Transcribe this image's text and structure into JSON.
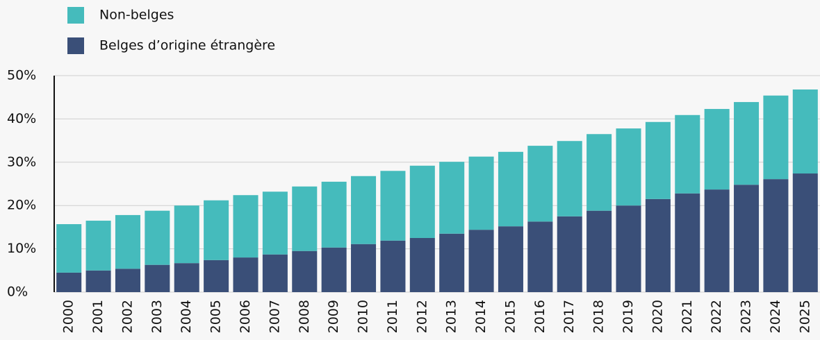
{
  "chart_data": {
    "type": "stacked_bar",
    "categories": [
      "2000",
      "2001",
      "2002",
      "2003",
      "2004",
      "2005",
      "2006",
      "2007",
      "2008",
      "2009",
      "2010",
      "2011",
      "2012",
      "2013",
      "2014",
      "2015",
      "2016",
      "2017",
      "2018",
      "2019",
      "2020",
      "2021",
      "2022",
      "2023",
      "2024",
      "2025"
    ],
    "series": [
      {
        "name": "Non-belges",
        "color": "#45bbbc",
        "values": [
          11.2,
          11.5,
          12.4,
          12.5,
          13.3,
          13.8,
          14.4,
          14.5,
          14.9,
          15.2,
          15.7,
          16.1,
          16.7,
          16.6,
          16.9,
          17.2,
          17.5,
          17.4,
          17.7,
          17.8,
          17.8,
          18.1,
          18.6,
          19.1,
          19.3,
          19.4
        ]
      },
      {
        "name": "Belges d’origine étrangère",
        "color": "#3a4f78",
        "values": [
          4.5,
          5.0,
          5.4,
          6.3,
          6.7,
          7.4,
          8.0,
          8.7,
          9.5,
          10.3,
          11.1,
          11.9,
          12.5,
          13.5,
          14.4,
          15.2,
          16.3,
          17.5,
          18.8,
          20.0,
          21.5,
          22.8,
          23.7,
          24.8,
          26.1,
          27.4
        ]
      }
    ],
    "ylim": [
      0,
      50
    ],
    "yticks": [
      {
        "value": 0,
        "label": "0%"
      },
      {
        "value": 10,
        "label": "10%"
      },
      {
        "value": 20,
        "label": "20%"
      },
      {
        "value": 30,
        "label": "30%"
      },
      {
        "value": 40,
        "label": "40%"
      },
      {
        "value": 50,
        "label": "50%"
      }
    ],
    "grid": true
  }
}
